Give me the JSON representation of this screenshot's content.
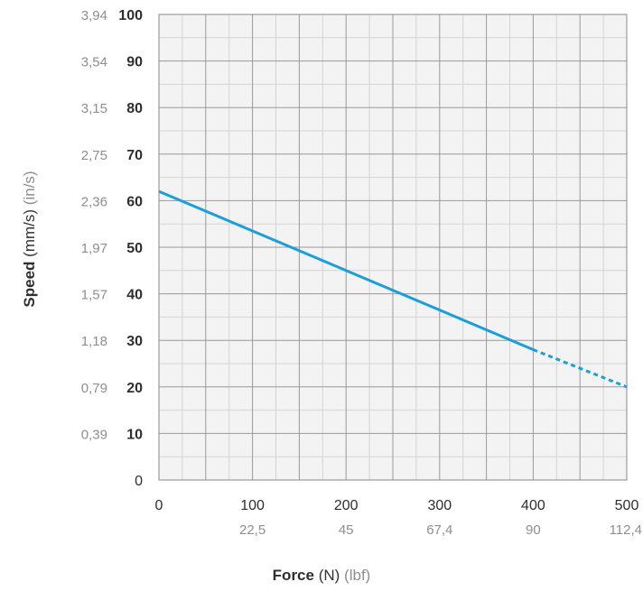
{
  "chart_data": {
    "type": "line",
    "x_primary": {
      "label": "Force",
      "unit": "(N)",
      "ticks": [
        "0",
        "100",
        "200",
        "300",
        "400",
        "500"
      ]
    },
    "x_secondary": {
      "unit": "(lbf)",
      "ticks": [
        "22,5",
        "45",
        "67,4",
        "90",
        "112,4"
      ]
    },
    "y_primary": {
      "label": "Speed",
      "unit": "(mm/s)",
      "ticks": [
        "0",
        "10",
        "20",
        "30",
        "40",
        "50",
        "60",
        "70",
        "80",
        "90",
        "100"
      ]
    },
    "y_secondary": {
      "unit": "(in/s)",
      "ticks": [
        "0,39",
        "0,79",
        "1,18",
        "1,57",
        "1,97",
        "2,36",
        "2,75",
        "3,15",
        "3,54",
        "3,94"
      ]
    },
    "xlim": [
      0,
      500
    ],
    "ylim": [
      0,
      100
    ],
    "grid": true,
    "series": [
      {
        "style": "solid",
        "x": [
          0,
          400
        ],
        "y": [
          62,
          28
        ]
      },
      {
        "style": "dotted",
        "x": [
          400,
          500
        ],
        "y": [
          28,
          20
        ]
      }
    ],
    "colors": {
      "line": "#1a9fd9",
      "grid_major": "#999999",
      "grid_minor": "#d4d4d4",
      "plot_bg": "#f3f3f3"
    }
  }
}
